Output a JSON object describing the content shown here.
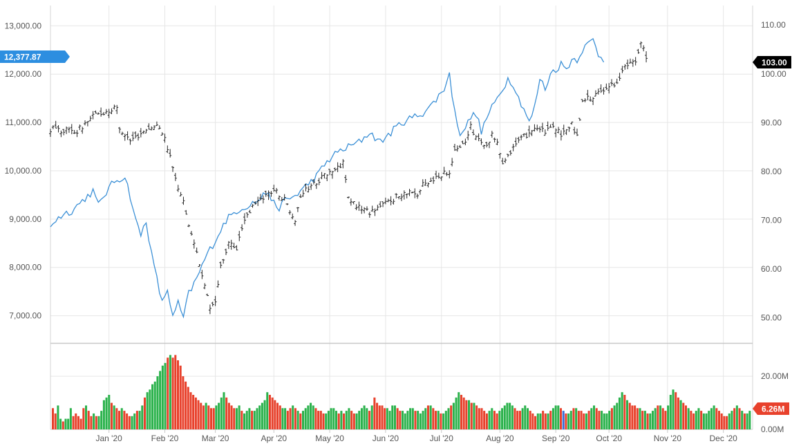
{
  "chart_data": {
    "type": "ohlc-line-volume",
    "left_axis": {
      "ticks": [
        "13,000.00",
        "12,000.00",
        "11,000.00",
        "10,000.00",
        "9,000.00",
        "8,000.00",
        "7,000.00"
      ],
      "tick_values": [
        13000,
        12000,
        11000,
        10000,
        9000,
        8000,
        7000
      ],
      "range": [
        6450,
        13420
      ]
    },
    "right_axis": {
      "ticks": [
        "110.00",
        "100.00",
        "90.00",
        "80.00",
        "70.00",
        "60.00",
        "50.00"
      ],
      "tick_values": [
        110,
        100,
        90,
        80,
        70,
        60,
        50
      ],
      "range": [
        45,
        114
      ]
    },
    "volume_axis": {
      "ticks": [
        "20.00M",
        "0.00M"
      ],
      "tick_values": [
        20,
        0
      ],
      "range": [
        0,
        32
      ]
    },
    "x_axis": {
      "labels": [
        "Jan '20",
        "Feb '20",
        "Mar '20",
        "Apr '20",
        "May '20",
        "Jun '20",
        "Jul '20",
        "Aug '20",
        "Sep '20",
        "Oct '20",
        "Nov '20",
        "Dec '20"
      ],
      "positions": [
        22,
        43,
        62,
        84,
        105,
        126,
        147,
        169,
        190,
        210,
        232,
        253
      ],
      "range": [
        0,
        264
      ]
    },
    "last_value_left": "12,377.87",
    "last_value_right": "103.00",
    "last_volume": "6.26M",
    "colors": {
      "line": "#3a8fd6",
      "ohlc": "#222222",
      "volume_up": "#2bb24c",
      "volume_down": "#e8412c",
      "volume_neutral": "#3a6fd6",
      "left_badge": "#2d8ee0",
      "right_badge": "#000000",
      "volume_badge": "#e8412c",
      "grid": "#e6e6e6"
    },
    "ohlc_anchors": [
      [
        0,
        10860
      ],
      [
        10,
        10820
      ],
      [
        16,
        11130
      ],
      [
        25,
        11300
      ],
      [
        26,
        10900
      ],
      [
        30,
        10620
      ],
      [
        36,
        10860
      ],
      [
        41,
        10930
      ],
      [
        43,
        10700
      ],
      [
        47,
        9820
      ],
      [
        50,
        9350
      ],
      [
        53,
        8650
      ],
      [
        55,
        8350
      ],
      [
        57,
        7800
      ],
      [
        60,
        7150
      ],
      [
        62,
        7280
      ],
      [
        64,
        8000
      ],
      [
        67,
        8500
      ],
      [
        70,
        8350
      ],
      [
        72,
        8850
      ],
      [
        76,
        9250
      ],
      [
        80,
        9470
      ],
      [
        84,
        9600
      ],
      [
        88,
        9400
      ],
      [
        92,
        9000
      ],
      [
        94,
        9500
      ],
      [
        98,
        9700
      ],
      [
        103,
        9900
      ],
      [
        108,
        10050
      ],
      [
        110,
        10200
      ],
      [
        112,
        9400
      ],
      [
        116,
        9250
      ],
      [
        120,
        9150
      ],
      [
        125,
        9300
      ],
      [
        130,
        9450
      ],
      [
        135,
        9600
      ],
      [
        138,
        9500
      ],
      [
        140,
        9700
      ],
      [
        146,
        9900
      ],
      [
        150,
        10000
      ],
      [
        152,
        10400
      ],
      [
        156,
        10600
      ],
      [
        158,
        10900
      ],
      [
        160,
        10700
      ],
      [
        164,
        10500
      ],
      [
        166,
        10800
      ],
      [
        168,
        10550
      ],
      [
        170,
        10200
      ],
      [
        174,
        10500
      ],
      [
        178,
        10700
      ],
      [
        182,
        10900
      ],
      [
        186,
        10800
      ],
      [
        190,
        10900
      ],
      [
        192,
        10700
      ],
      [
        196,
        11000
      ],
      [
        198,
        10700
      ],
      [
        200,
        11500
      ],
      [
        204,
        11500
      ],
      [
        208,
        11700
      ],
      [
        212,
        11800
      ],
      [
        214,
        11950
      ],
      [
        216,
        12150
      ],
      [
        220,
        12250
      ],
      [
        222,
        12700
      ],
      [
        224,
        12380
      ]
    ],
    "line_anchors": [
      [
        0,
        69
      ],
      [
        4,
        71
      ],
      [
        8,
        72
      ],
      [
        12,
        74
      ],
      [
        16,
        76
      ],
      [
        18,
        73
      ],
      [
        20,
        75
      ],
      [
        24,
        78
      ],
      [
        28,
        79
      ],
      [
        30,
        75
      ],
      [
        32,
        70
      ],
      [
        34,
        67
      ],
      [
        36,
        70
      ],
      [
        38,
        63
      ],
      [
        40,
        58
      ],
      [
        42,
        53
      ],
      [
        44,
        56
      ],
      [
        46,
        50
      ],
      [
        48,
        53
      ],
      [
        50,
        50
      ],
      [
        52,
        55
      ],
      [
        55,
        58
      ],
      [
        58,
        62
      ],
      [
        62,
        66
      ],
      [
        66,
        70
      ],
      [
        70,
        72
      ],
      [
        74,
        73
      ],
      [
        78,
        74
      ],
      [
        82,
        76
      ],
      [
        85,
        72
      ],
      [
        88,
        74
      ],
      [
        92,
        75
      ],
      [
        96,
        77
      ],
      [
        100,
        79
      ],
      [
        104,
        82
      ],
      [
        108,
        84
      ],
      [
        112,
        85
      ],
      [
        116,
        86
      ],
      [
        120,
        88
      ],
      [
        124,
        86
      ],
      [
        128,
        88
      ],
      [
        132,
        90
      ],
      [
        136,
        91
      ],
      [
        140,
        92
      ],
      [
        144,
        94
      ],
      [
        148,
        97
      ],
      [
        150,
        100
      ],
      [
        152,
        92
      ],
      [
        154,
        88
      ],
      [
        156,
        89
      ],
      [
        158,
        91
      ],
      [
        160,
        92
      ],
      [
        162,
        88
      ],
      [
        164,
        91
      ],
      [
        166,
        93
      ],
      [
        168,
        95
      ],
      [
        170,
        97
      ],
      [
        172,
        99
      ],
      [
        174,
        98
      ],
      [
        176,
        95
      ],
      [
        178,
        93
      ],
      [
        180,
        90
      ],
      [
        182,
        93
      ],
      [
        184,
        99
      ],
      [
        186,
        97
      ],
      [
        188,
        100
      ],
      [
        190,
        101
      ],
      [
        192,
        102
      ],
      [
        194,
        101
      ],
      [
        196,
        103
      ],
      [
        198,
        103
      ],
      [
        200,
        105
      ],
      [
        202,
        106
      ],
      [
        204,
        107
      ],
      [
        206,
        104
      ],
      [
        208,
        103
      ]
    ],
    "volume_pattern": [
      8,
      6,
      9,
      4,
      3,
      4,
      4,
      8,
      5,
      6,
      5,
      4,
      8,
      9,
      7,
      5,
      6,
      5,
      5,
      7,
      11,
      12,
      13,
      10,
      9,
      8,
      7,
      8,
      7,
      6,
      5,
      5,
      6,
      7,
      7,
      9,
      12,
      14,
      15,
      17,
      18,
      20,
      22,
      24,
      25,
      27,
      28,
      27,
      28,
      26,
      24,
      20,
      18,
      16,
      14,
      13,
      12,
      11,
      10,
      9,
      10,
      9,
      8,
      8,
      9,
      10,
      12,
      14,
      12,
      10,
      9,
      8,
      8,
      9,
      7,
      6,
      7,
      8,
      7,
      7,
      8,
      9,
      10,
      11,
      14,
      13,
      12,
      11,
      10,
      9,
      8,
      8,
      7,
      8,
      9,
      8,
      7,
      6,
      7,
      8,
      9,
      10,
      9,
      8,
      7,
      7,
      6,
      6,
      7,
      8,
      8,
      7,
      6,
      7,
      6,
      7,
      8,
      7,
      6,
      6,
      7,
      8,
      9,
      8,
      7,
      9,
      12,
      10,
      9,
      9,
      8,
      8,
      7,
      9,
      9,
      8,
      7,
      7,
      6,
      7,
      8,
      8,
      7,
      7,
      6,
      7,
      8,
      9,
      9,
      8,
      7,
      7,
      6,
      6,
      7,
      8,
      9,
      10,
      12,
      14,
      13,
      12,
      11,
      11,
      10,
      10,
      9,
      8,
      8,
      7,
      6,
      7,
      8,
      7,
      6,
      7,
      8,
      9,
      10,
      10,
      9,
      8,
      7,
      7,
      8,
      9,
      8,
      7,
      6,
      5,
      6,
      6,
      7,
      6,
      6,
      7,
      8,
      9,
      9,
      8,
      7,
      6,
      6,
      7,
      8,
      8,
      7,
      7,
      6,
      6,
      7,
      8,
      9,
      8,
      7,
      7,
      6,
      6,
      7,
      8,
      9,
      10,
      12,
      14,
      13,
      11,
      10,
      9,
      9,
      8,
      8,
      7,
      7,
      6,
      6,
      7,
      8,
      9,
      9,
      8,
      7,
      9,
      13,
      15,
      14,
      12,
      11,
      10,
      9,
      8,
      7,
      6,
      7,
      8,
      7,
      6,
      6,
      7,
      8,
      9,
      8,
      7,
      6,
      5,
      5,
      6,
      7,
      8,
      9,
      8,
      7,
      6,
      6,
      7
    ]
  }
}
